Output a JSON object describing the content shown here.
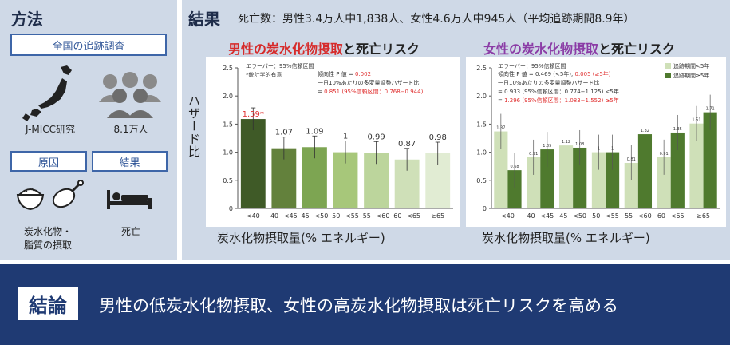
{
  "methods": {
    "title": "方法",
    "study_box": "全国の追跡調査",
    "study_name": "J-MICC研究",
    "participants": "8.1万人",
    "cause_box": "原因",
    "result_box": "結果",
    "cause_label_1": "炭水化物・",
    "cause_label_2": "脂質の摂取",
    "result_label": "死亡"
  },
  "results": {
    "title": "結果",
    "subtitle": "死亡数：男性3.4万人中1,838人、女性4.6万人中945人（平均追跡期間8.9年）",
    "ylabel": "ハザード比",
    "xlabel": "炭水化物摂取量(% エネルギー)"
  },
  "conclusion": {
    "label": "結論",
    "text": "男性の低炭水化物摂取、女性の高炭水化物摂取は死亡リスクを高める"
  },
  "chart_data": [
    {
      "type": "bar",
      "title_hl": "男性の炭水化物摂取",
      "title_rest": "と死亡リスク",
      "categories": [
        "<40",
        "40−<45",
        "45−<50",
        "50−<55",
        "55−<60",
        "60−<65",
        "≥65"
      ],
      "values": [
        1.59,
        1.07,
        1.09,
        1.0,
        0.99,
        0.87,
        0.98
      ],
      "value_labels": [
        "1.59*",
        "1.07",
        "1.09",
        "1",
        "0.99",
        "0.87",
        "0.98"
      ],
      "ylim": [
        0,
        2.5
      ],
      "yticks": [
        "0",
        "0.5",
        "1.0",
        "1.5",
        "2.0",
        "2.5"
      ],
      "colors": [
        "#3f5a27",
        "#63813c",
        "#7da552",
        "#a7c77a",
        "#bcd59c",
        "#cfe0b8",
        "#e1ecd3"
      ],
      "highlight_color": "#e03030",
      "notes": [
        {
          "text": "エラーバー：95%信頼区間",
          "red": false
        },
        {
          "text": "*統計学的有意",
          "red": false
        }
      ],
      "stats": [
        {
          "text": "傾向性 P 値 = ",
          "value": "0.002"
        },
        {
          "text": "一日10%あたりの多変量調整ハザード比",
          "value": ""
        },
        {
          "text": "= ",
          "value": "0.851 (95%信頼区間：0.768−0.944)"
        }
      ]
    },
    {
      "type": "bar",
      "title_hl": "女性の炭水化物摂取",
      "title_rest": "と死亡リスク",
      "categories": [
        "<40",
        "40−<45",
        "45−<50",
        "50−<55",
        "55−<60",
        "60−<65",
        "≥65"
      ],
      "series": [
        {
          "name": "追跡期間<5年",
          "values": [
            1.37,
            0.91,
            1.12,
            1.0,
            0.81,
            0.91,
            1.51
          ],
          "color": "#cfe0b8"
        },
        {
          "name": "追跡期間≥5年",
          "values": [
            0.68,
            1.05,
            1.08,
            1.0,
            1.32,
            1.35,
            1.71
          ],
          "color": "#4f7a2e"
        }
      ],
      "ylim": [
        0,
        2.5
      ],
      "yticks": [
        "0",
        "0.5",
        "1.0",
        "1.5",
        "2.0",
        "2.5"
      ],
      "notes": [
        {
          "text": "エラーバー：95%信頼区間",
          "red": false
        }
      ],
      "stats": [
        {
          "text": "傾向性 P 値 = 0.469 (<5年), ",
          "value": "0.005 (≥5年)"
        },
        {
          "text": "一日10%あたりの多変量調整ハザード比",
          "value": ""
        },
        {
          "text": "= 0.933 (95%信頼区間：0.774−1.125) <5年",
          "value": ""
        },
        {
          "text": "= ",
          "value": "1.296 (95%信頼区間：1.083−1.552) ≥5年"
        }
      ]
    }
  ]
}
